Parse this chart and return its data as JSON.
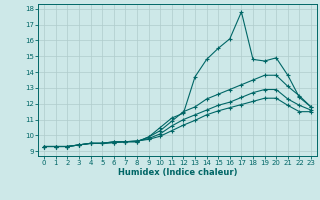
{
  "xlabel": "Humidex (Indice chaleur)",
  "bg_color": "#cde8e8",
  "grid_color": "#b0cccc",
  "line_color": "#006666",
  "xlim": [
    -0.5,
    23.5
  ],
  "ylim": [
    8.7,
    18.3
  ],
  "xticks": [
    0,
    1,
    2,
    3,
    4,
    5,
    6,
    7,
    8,
    9,
    10,
    11,
    12,
    13,
    14,
    15,
    16,
    17,
    18,
    19,
    20,
    21,
    22,
    23
  ],
  "yticks": [
    9,
    10,
    11,
    12,
    13,
    14,
    15,
    16,
    17,
    18
  ],
  "line1_x": [
    0,
    1,
    2,
    3,
    4,
    5,
    6,
    7,
    8,
    9,
    10,
    11,
    12,
    13,
    14,
    15,
    16,
    17,
    18,
    19,
    20,
    21,
    22,
    23
  ],
  "line1_y": [
    9.3,
    9.3,
    9.3,
    9.4,
    9.5,
    9.5,
    9.6,
    9.6,
    9.6,
    9.9,
    10.5,
    11.1,
    11.4,
    13.7,
    14.8,
    15.5,
    16.1,
    17.8,
    14.8,
    14.7,
    14.9,
    13.8,
    12.4,
    11.8
  ],
  "line2_x": [
    0,
    1,
    2,
    3,
    4,
    5,
    6,
    7,
    8,
    9,
    10,
    11,
    12,
    13,
    14,
    15,
    16,
    17,
    18,
    19,
    20,
    21,
    22,
    23
  ],
  "line2_y": [
    9.3,
    9.3,
    9.3,
    9.4,
    9.5,
    9.5,
    9.6,
    9.6,
    9.6,
    9.9,
    10.3,
    10.9,
    11.5,
    11.8,
    12.3,
    12.6,
    12.9,
    13.2,
    13.5,
    13.8,
    13.8,
    13.1,
    12.5,
    11.8
  ],
  "line3_x": [
    0,
    1,
    2,
    3,
    4,
    5,
    6,
    7,
    8,
    9,
    10,
    11,
    12,
    13,
    14,
    15,
    16,
    17,
    18,
    19,
    20,
    21,
    22,
    23
  ],
  "line3_y": [
    9.3,
    9.3,
    9.3,
    9.4,
    9.5,
    9.5,
    9.55,
    9.6,
    9.65,
    9.8,
    10.1,
    10.6,
    11.0,
    11.3,
    11.6,
    11.9,
    12.1,
    12.4,
    12.7,
    12.9,
    12.9,
    12.3,
    11.9,
    11.6
  ],
  "line4_x": [
    0,
    1,
    2,
    3,
    4,
    5,
    6,
    7,
    8,
    9,
    10,
    11,
    12,
    13,
    14,
    15,
    16,
    17,
    18,
    19,
    20,
    21,
    22,
    23
  ],
  "line4_y": [
    9.3,
    9.3,
    9.3,
    9.4,
    9.5,
    9.5,
    9.55,
    9.6,
    9.65,
    9.75,
    9.95,
    10.3,
    10.65,
    10.95,
    11.3,
    11.55,
    11.75,
    11.95,
    12.15,
    12.35,
    12.35,
    11.9,
    11.5,
    11.5
  ]
}
